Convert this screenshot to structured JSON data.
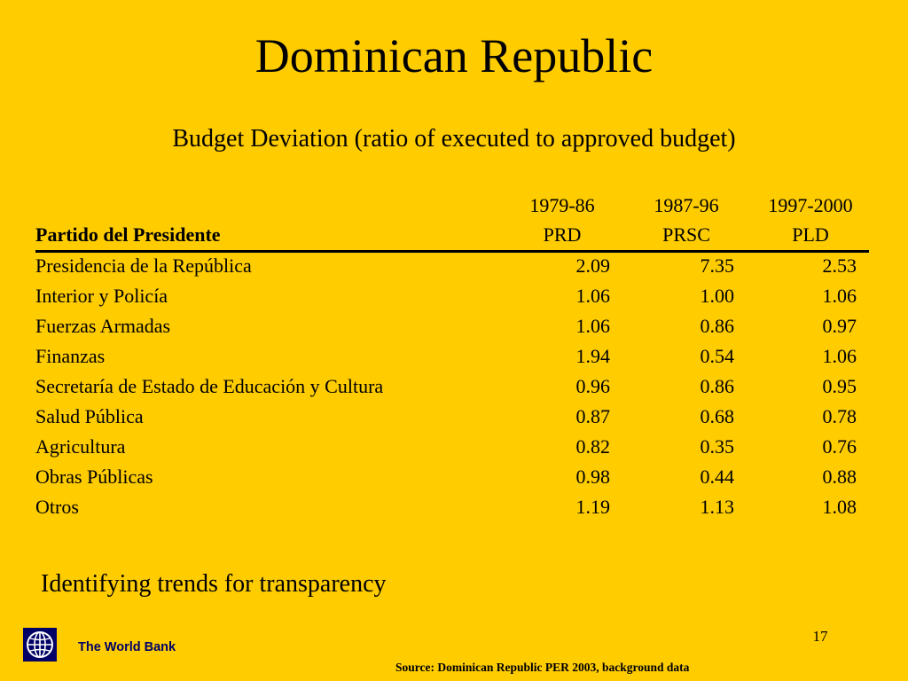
{
  "slide": {
    "title": "Dominican Republic",
    "subtitle": "Budget Deviation (ratio of executed to approved budget)",
    "footer_note": "Identifying trends for transparency",
    "page_number": "17",
    "org_name": "The World Bank",
    "source": "Source: Dominican Republic PER 2003, background data"
  },
  "table": {
    "row_header": "Partido del Presidente",
    "periods": [
      "1979-86",
      "1987-96",
      "1997-2000"
    ],
    "parties": [
      "PRD",
      "PRSC",
      "PLD"
    ],
    "rows": [
      {
        "label": "Presidencia de la República",
        "values": [
          "2.09",
          "7.35",
          "2.53"
        ]
      },
      {
        "label": "Interior y Policía",
        "values": [
          "1.06",
          "1.00",
          "1.06"
        ]
      },
      {
        "label": "Fuerzas Armadas",
        "values": [
          "1.06",
          "0.86",
          "0.97"
        ]
      },
      {
        "label": "Finanzas",
        "values": [
          "1.94",
          "0.54",
          "1.06"
        ]
      },
      {
        "label": "Secretaría de Estado de Educación y Cultura",
        "values": [
          "0.96",
          "0.86",
          "0.95"
        ]
      },
      {
        "label": "Salud Pública",
        "values": [
          "0.87",
          "0.68",
          "0.78"
        ]
      },
      {
        "label": "Agricultura",
        "values": [
          "0.82",
          "0.35",
          "0.76"
        ]
      },
      {
        "label": "Obras Públicas",
        "values": [
          "0.98",
          "0.44",
          "0.88"
        ]
      },
      {
        "label": "Otros",
        "values": [
          "1.19",
          "1.13",
          "1.08"
        ]
      }
    ]
  },
  "colors": {
    "background": "#FFCC00",
    "org_name_text": "#000066",
    "logo_background": "#000066"
  },
  "icons": {
    "logo": "world-bank-globe-icon"
  }
}
